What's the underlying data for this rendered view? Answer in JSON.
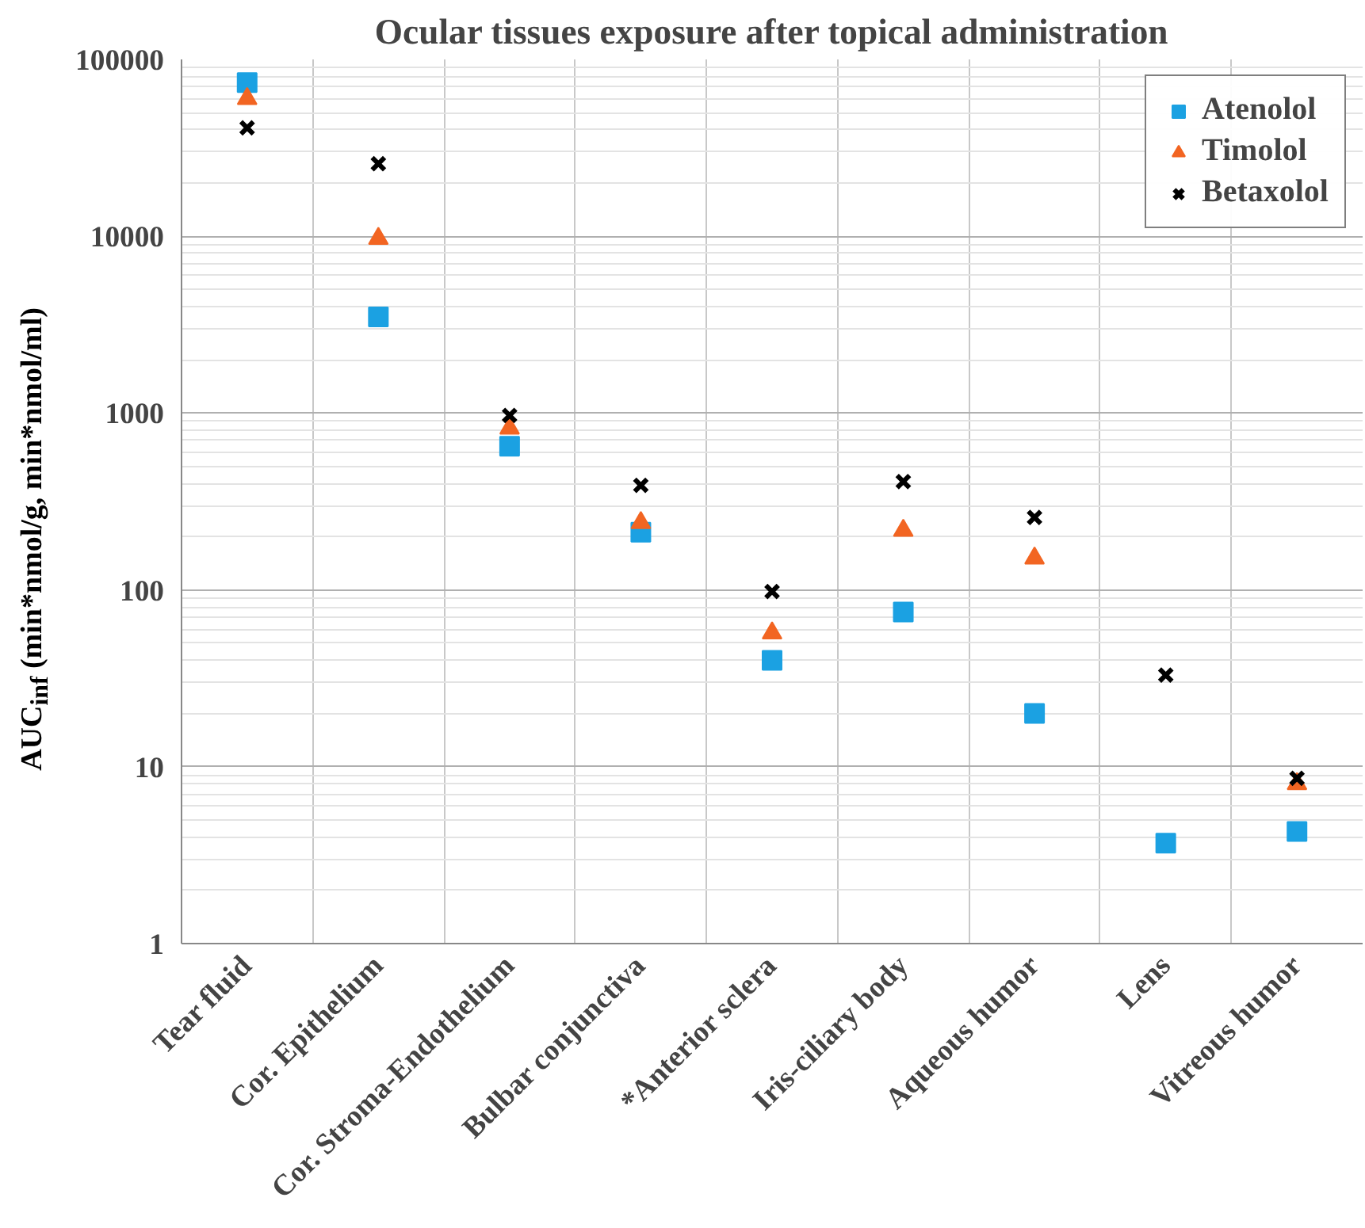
{
  "chart_data": {
    "type": "scatter",
    "title": "Ocular tissues exposure after topical administration",
    "ylabel": "AUC$_{inf}$ (min*nmol/g, min*nmol/ml)",
    "categories": [
      "Tear fluid",
      "Cor. Epithelium",
      "Cor. Stroma-Endothelium",
      "Bulbar conjunctiva",
      "*Anterior sclera",
      "Iris-ciliary body",
      "Aqueous humor",
      "Lens",
      "Vitreous humor"
    ],
    "log": "y",
    "ylim": [
      1,
      100000
    ],
    "yticks": [
      1,
      10,
      100,
      1000,
      10000,
      100000
    ],
    "grid": true,
    "legend": "top right",
    "series": [
      {
        "name": "Atenolol",
        "color": "#1ba1e2",
        "marker": "square",
        "values": [
          74000,
          3500,
          650,
          212,
          40,
          75,
          20,
          3.7,
          4.3
        ]
      },
      {
        "name": "Timolol",
        "color": "#f26522",
        "marker": "triangle",
        "values": [
          60000,
          9700,
          820,
          240,
          57,
          217,
          151,
          null,
          8.0
        ]
      },
      {
        "name": "Betaxolol",
        "color": "#000000",
        "marker": "cross",
        "values": [
          41000,
          25700,
          970,
          390,
          98,
          410,
          257,
          33,
          8.6
        ]
      }
    ]
  }
}
